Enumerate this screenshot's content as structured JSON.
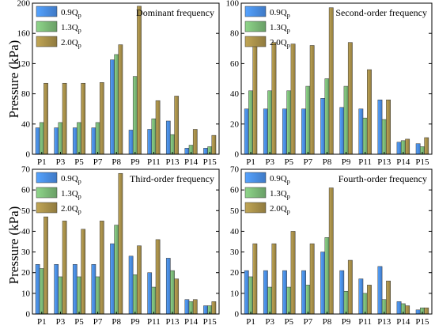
{
  "ylabel": "Pressure (kPa)",
  "colors": {
    "q09": "#4a8ee8",
    "q13": "#7cba78",
    "q20": "#a8904a"
  },
  "chart_data": [
    {
      "type": "bar",
      "title": "Dominant frequency",
      "ylabel": "Pressure (kPa)",
      "ylim": [
        0,
        200
      ],
      "yticks": [
        0,
        40,
        80,
        120,
        160,
        200
      ],
      "categories": [
        "P1",
        "P3",
        "P5",
        "P7",
        "P8",
        "P9",
        "P11",
        "P13",
        "P14",
        "P15"
      ],
      "legend": [
        "0.9Q",
        "1.3Q",
        "2.0Q"
      ],
      "legend_sub": "p",
      "series": [
        {
          "name": "0.9Qp",
          "values": [
            35,
            35,
            35,
            35,
            125,
            32,
            33,
            44,
            8,
            8
          ]
        },
        {
          "name": "1.3Qp",
          "values": [
            42,
            42,
            42,
            42,
            132,
            103,
            47,
            26,
            12,
            10
          ]
        },
        {
          "name": "2.0Qp",
          "values": [
            94,
            94,
            94,
            95,
            145,
            196,
            71,
            77,
            33,
            25
          ]
        }
      ]
    },
    {
      "type": "bar",
      "title": "Second-order frequency",
      "ylim": [
        0,
        100
      ],
      "yticks": [
        0,
        20,
        40,
        60,
        80,
        100
      ],
      "categories": [
        "P1",
        "P3",
        "P5",
        "P7",
        "P8",
        "P9",
        "P11",
        "P13",
        "P14",
        "P15"
      ],
      "legend": [
        "0.9Q",
        "1.3Q",
        "2.0Q"
      ],
      "legend_sub": "p",
      "series": [
        {
          "name": "0.9Qp",
          "values": [
            30,
            30,
            30,
            30,
            37,
            31,
            30,
            36,
            8,
            7
          ]
        },
        {
          "name": "1.3Qp",
          "values": [
            42,
            42,
            42,
            45,
            50,
            45,
            24,
            23,
            9,
            5
          ]
        },
        {
          "name": "2.0Qp",
          "values": [
            75,
            74,
            73,
            72,
            97,
            74,
            56,
            36,
            10,
            11
          ]
        }
      ]
    },
    {
      "type": "bar",
      "title": "Third-order frequency",
      "ylabel": "Pressure (kPa)",
      "ylim": [
        0,
        70
      ],
      "yticks": [
        0,
        10,
        20,
        30,
        40,
        50,
        60,
        70
      ],
      "categories": [
        "P1",
        "P3",
        "P5",
        "P7",
        "P8",
        "P9",
        "P11",
        "P13",
        "P14",
        "P15"
      ],
      "legend": [
        "0.9Q",
        "1.3Q",
        "2.0Q"
      ],
      "legend_sub": "p",
      "series": [
        {
          "name": "0.9Qp",
          "values": [
            24,
            24,
            24,
            24,
            34,
            28,
            20,
            27,
            7,
            4
          ]
        },
        {
          "name": "1.3Qp",
          "values": [
            22,
            18,
            18,
            18,
            43,
            19,
            13,
            21,
            6,
            4
          ]
        },
        {
          "name": "2.0Qp",
          "values": [
            47,
            45,
            41,
            45,
            68,
            33,
            36,
            17,
            7,
            6
          ]
        }
      ]
    },
    {
      "type": "bar",
      "title": "Fourth-order frequency",
      "ylim": [
        0,
        70
      ],
      "yticks": [
        0,
        10,
        20,
        30,
        40,
        50,
        60,
        70
      ],
      "categories": [
        "P1",
        "P3",
        "P5",
        "P7",
        "P8",
        "P9",
        "P11",
        "P13",
        "P14",
        "P15"
      ],
      "legend": [
        "0.9Q",
        "1.3Q",
        "2.0Q"
      ],
      "legend_sub": "p",
      "series": [
        {
          "name": "0.9Qp",
          "values": [
            21,
            21,
            21,
            21,
            30,
            21,
            17,
            23,
            6,
            2
          ]
        },
        {
          "name": "1.3Qp",
          "values": [
            18,
            13,
            13,
            14,
            37,
            11,
            10,
            7,
            5,
            3
          ]
        },
        {
          "name": "2.0Qp",
          "values": [
            34,
            34,
            40,
            34,
            61,
            26,
            14,
            16,
            4,
            3
          ]
        }
      ]
    }
  ]
}
